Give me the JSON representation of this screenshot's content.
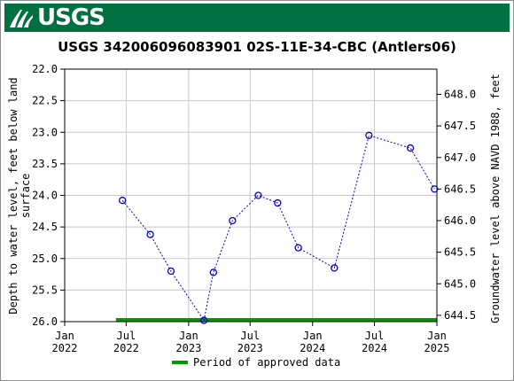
{
  "header": {
    "logo_text": "USGS",
    "banner_color": "#006f41"
  },
  "chart_data": {
    "type": "scatter",
    "title": "USGS 342006096083901 02S-11E-34-CBC (Antlers06)",
    "ylabel_left_line1": "Depth to water level, feet below land",
    "ylabel_left_line2": "surface",
    "ylabel_right": "Groundwater level above NAVD 1988, feet",
    "ylim_left": [
      26.0,
      22.0
    ],
    "ylim_right": [
      644.4,
      648.4
    ],
    "left_ticks": [
      "22.0",
      "22.5",
      "23.0",
      "23.5",
      "24.0",
      "24.5",
      "25.0",
      "25.5",
      "26.0"
    ],
    "right_ticks": [
      "644.5",
      "645.0",
      "645.5",
      "646.0",
      "646.5",
      "647.0",
      "647.5",
      "648.0"
    ],
    "x_ticks": [
      {
        "date": "2022-01-01",
        "line1": "Jan",
        "line2": "2022"
      },
      {
        "date": "2022-07-01",
        "line1": "Jul",
        "line2": "2022"
      },
      {
        "date": "2023-01-01",
        "line1": "Jan",
        "line2": "2023"
      },
      {
        "date": "2023-07-01",
        "line1": "Jul",
        "line2": "2023"
      },
      {
        "date": "2024-01-01",
        "line1": "Jan",
        "line2": "2024"
      },
      {
        "date": "2024-07-01",
        "line1": "Jul",
        "line2": "2024"
      },
      {
        "date": "2025-01-01",
        "line1": "Jan",
        "line2": "2025"
      }
    ],
    "xlim": [
      "2022-01-01",
      "2025-01-01"
    ],
    "series": [
      {
        "name": "",
        "x": [
          "2022-06-20",
          "2022-09-10",
          "2022-11-10",
          "2023-02-15",
          "2023-03-15",
          "2023-05-10",
          "2023-07-25",
          "2023-09-20",
          "2023-11-20",
          "2024-03-05",
          "2024-06-15",
          "2024-10-15",
          "2024-12-25"
        ],
        "y": [
          24.08,
          24.62,
          25.2,
          25.98,
          25.22,
          24.4,
          24.0,
          24.12,
          24.83,
          25.15,
          23.05,
          23.25,
          23.9
        ],
        "color": "#0000cc"
      }
    ],
    "approved_period": {
      "start": "2022-06-01",
      "end": "2024-12-31",
      "color": "#009900"
    },
    "legend": {
      "label": "Period of approved data",
      "placement": "bottom"
    },
    "grid": true
  }
}
